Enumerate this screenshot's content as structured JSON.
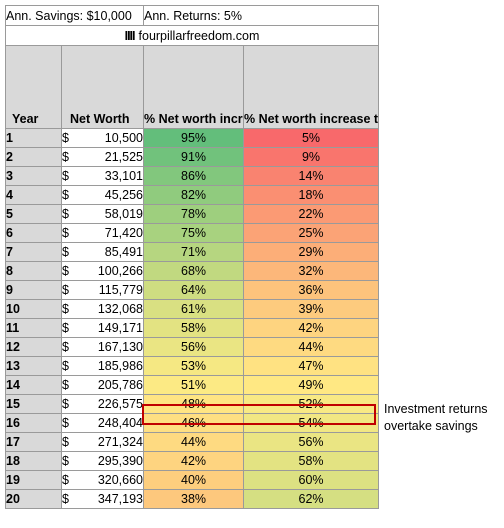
{
  "header": {
    "savings": "Ann. Savings: $10,000",
    "returns": "Ann. Returns: 5%",
    "logo_mark": "IIII",
    "site": "fourpillarfreedom.com"
  },
  "columns": {
    "year": "Year",
    "net_worth": "Net Worth",
    "savings_share": "% Net worth increase that came from savings",
    "returns_share": "% Net worth increase that came from investment returns"
  },
  "rows": [
    {
      "year": "1",
      "net_worth": "10,500",
      "savings": "95%",
      "returns": "5%"
    },
    {
      "year": "2",
      "net_worth": "21,525",
      "savings": "91%",
      "returns": "9%"
    },
    {
      "year": "3",
      "net_worth": "33,101",
      "savings": "86%",
      "returns": "14%"
    },
    {
      "year": "4",
      "net_worth": "45,256",
      "savings": "82%",
      "returns": "18%"
    },
    {
      "year": "5",
      "net_worth": "58,019",
      "savings": "78%",
      "returns": "22%"
    },
    {
      "year": "6",
      "net_worth": "71,420",
      "savings": "75%",
      "returns": "25%"
    },
    {
      "year": "7",
      "net_worth": "85,491",
      "savings": "71%",
      "returns": "29%"
    },
    {
      "year": "8",
      "net_worth": "100,266",
      "savings": "68%",
      "returns": "32%"
    },
    {
      "year": "9",
      "net_worth": "115,779",
      "savings": "64%",
      "returns": "36%"
    },
    {
      "year": "10",
      "net_worth": "132,068",
      "savings": "61%",
      "returns": "39%"
    },
    {
      "year": "11",
      "net_worth": "149,171",
      "savings": "58%",
      "returns": "42%"
    },
    {
      "year": "12",
      "net_worth": "167,130",
      "savings": "56%",
      "returns": "44%"
    },
    {
      "year": "13",
      "net_worth": "185,986",
      "savings": "53%",
      "returns": "47%"
    },
    {
      "year": "14",
      "net_worth": "205,786",
      "savings": "51%",
      "returns": "49%"
    },
    {
      "year": "15",
      "net_worth": "226,575",
      "savings": "48%",
      "returns": "52%"
    },
    {
      "year": "16",
      "net_worth": "248,404",
      "savings": "46%",
      "returns": "54%"
    },
    {
      "year": "17",
      "net_worth": "271,324",
      "savings": "44%",
      "returns": "56%"
    },
    {
      "year": "18",
      "net_worth": "295,390",
      "savings": "42%",
      "returns": "58%"
    },
    {
      "year": "19",
      "net_worth": "320,660",
      "savings": "40%",
      "returns": "60%"
    },
    {
      "year": "20",
      "net_worth": "347,193",
      "savings": "38%",
      "returns": "62%"
    }
  ],
  "currency_symbol": "$",
  "annotation": "Investment returns overtake savings",
  "colors": {
    "high_green": "#63be7b",
    "mid_yellow": "#ffeb84",
    "low_red": "#f8696b",
    "header_gray": "#d9d9d9",
    "highlight_red": "#c00000"
  }
}
